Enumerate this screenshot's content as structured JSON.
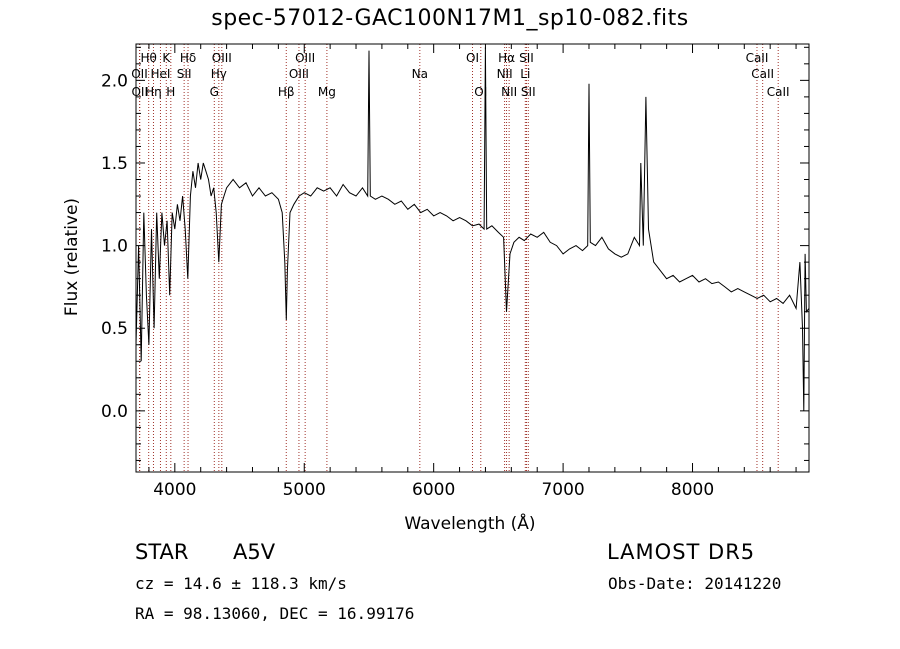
{
  "chart_data": {
    "type": "line",
    "title": "spec-57012-GAC100N17M1_sp10-082.fits",
    "xlabel": "Wavelength (Å)",
    "ylabel": "Flux (relative)",
    "xlim": [
      3700,
      8900
    ],
    "ylim": [
      -0.37,
      2.22
    ],
    "x_ticks": [
      4000,
      5000,
      6000,
      7000,
      8000
    ],
    "x_tick_labels": [
      "4000",
      "5000",
      "6000",
      "7000",
      "8000"
    ],
    "y_ticks": [
      0.0,
      0.5,
      1.0,
      1.5,
      2.0
    ],
    "y_tick_labels": [
      "0.0",
      "0.5",
      "1.0",
      "1.5",
      "2.0"
    ],
    "grid": false,
    "line_color": "#000000",
    "marker_color": "#a0322a",
    "series": [
      {
        "x": [
          3700,
          3720,
          3740,
          3760,
          3780,
          3800,
          3820,
          3840,
          3860,
          3880,
          3900,
          3920,
          3940,
          3960,
          3980,
          4000,
          4020,
          4040,
          4060,
          4080,
          4100,
          4120,
          4140,
          4160,
          4180,
          4200,
          4220,
          4240,
          4260,
          4280,
          4300,
          4320,
          4340,
          4360,
          4380,
          4400,
          4450,
          4500,
          4550,
          4600,
          4650,
          4700,
          4750,
          4800,
          4830,
          4850,
          4861,
          4870,
          4890,
          4920,
          4960,
          5000,
          5050,
          5100,
          5150,
          5200,
          5250,
          5300,
          5350,
          5400,
          5450,
          5490,
          5500,
          5510,
          5550,
          5600,
          5650,
          5700,
          5750,
          5800,
          5850,
          5900,
          5950,
          6000,
          6050,
          6100,
          6150,
          6200,
          6250,
          6300,
          6350,
          6390,
          6400,
          6410,
          6450,
          6500,
          6540,
          6563,
          6590,
          6620,
          6660,
          6700,
          6750,
          6800,
          6850,
          6900,
          6950,
          7000,
          7050,
          7100,
          7150,
          7190,
          7200,
          7210,
          7250,
          7300,
          7350,
          7400,
          7450,
          7500,
          7550,
          7590,
          7600,
          7620,
          7640,
          7660,
          7700,
          7750,
          7800,
          7850,
          7900,
          7950,
          8000,
          8050,
          8100,
          8150,
          8200,
          8250,
          8300,
          8350,
          8400,
          8450,
          8500,
          8550,
          8600,
          8650,
          8700,
          8750,
          8800,
          8830,
          8850,
          8860,
          8870,
          8880,
          8900
        ],
        "y": [
          0.4,
          1.0,
          0.3,
          1.2,
          0.7,
          0.4,
          1.1,
          0.5,
          1.2,
          0.8,
          1.2,
          1.0,
          1.15,
          0.7,
          1.2,
          1.1,
          1.25,
          1.15,
          1.3,
          1.1,
          0.8,
          1.3,
          1.45,
          1.35,
          1.5,
          1.4,
          1.5,
          1.45,
          1.4,
          1.3,
          1.35,
          1.2,
          0.9,
          1.25,
          1.3,
          1.35,
          1.4,
          1.35,
          1.38,
          1.3,
          1.35,
          1.3,
          1.32,
          1.28,
          1.2,
          0.9,
          0.55,
          0.85,
          1.2,
          1.25,
          1.3,
          1.32,
          1.3,
          1.35,
          1.33,
          1.35,
          1.3,
          1.37,
          1.32,
          1.3,
          1.35,
          1.3,
          2.18,
          1.3,
          1.28,
          1.3,
          1.28,
          1.25,
          1.27,
          1.22,
          1.25,
          1.2,
          1.22,
          1.18,
          1.2,
          1.18,
          1.15,
          1.17,
          1.15,
          1.12,
          1.13,
          1.1,
          2.2,
          1.1,
          1.12,
          1.08,
          1.05,
          0.6,
          0.95,
          1.02,
          1.05,
          1.03,
          1.07,
          1.05,
          1.08,
          1.02,
          1.0,
          0.95,
          0.98,
          1.0,
          0.97,
          1.0,
          1.98,
          1.02,
          1.0,
          1.05,
          0.98,
          0.95,
          0.93,
          0.95,
          1.05,
          1.0,
          1.5,
          1.0,
          1.9,
          1.1,
          0.9,
          0.85,
          0.8,
          0.82,
          0.78,
          0.8,
          0.82,
          0.78,
          0.8,
          0.77,
          0.78,
          0.75,
          0.72,
          0.74,
          0.72,
          0.7,
          0.68,
          0.7,
          0.66,
          0.68,
          0.65,
          0.7,
          0.62,
          0.9,
          0.5,
          0.0,
          0.95,
          0.6,
          0.62
        ]
      }
    ],
    "line_markers": [
      {
        "label": "Hθ",
        "x": 3798,
        "row": 1
      },
      {
        "label": "K",
        "x": 3934,
        "row": 1
      },
      {
        "label": "Hδ",
        "x": 4102,
        "row": 1
      },
      {
        "label": "OIII",
        "x": 4363,
        "row": 1
      },
      {
        "label": "OIII",
        "x": 5007,
        "row": 1
      },
      {
        "label": "OI",
        "x": 6300,
        "row": 1
      },
      {
        "label": "Hα",
        "x": 6563,
        "row": 1
      },
      {
        "label": "SII",
        "x": 6717,
        "row": 1
      },
      {
        "label": "CaII",
        "x": 8498,
        "row": 1
      },
      {
        "label": "OII",
        "x": 3727,
        "row": 2
      },
      {
        "label": "HeI",
        "x": 3889,
        "row": 2
      },
      {
        "label": "SII",
        "x": 4072,
        "row": 2
      },
      {
        "label": "Hγ",
        "x": 4340,
        "row": 2
      },
      {
        "label": "OIII",
        "x": 4959,
        "row": 2
      },
      {
        "label": "Na",
        "x": 5893,
        "row": 2
      },
      {
        "label": "NII",
        "x": 6548,
        "row": 2
      },
      {
        "label": "Li",
        "x": 6708,
        "row": 2
      },
      {
        "label": "CaII",
        "x": 8542,
        "row": 2
      },
      {
        "label": "OII",
        "x": 3729,
        "row": 3
      },
      {
        "label": "Hη",
        "x": 3835,
        "row": 3
      },
      {
        "label": "H",
        "x": 3969,
        "row": 3
      },
      {
        "label": "G",
        "x": 4305,
        "row": 3
      },
      {
        "label": "Hβ",
        "x": 4861,
        "row": 3
      },
      {
        "label": "Mg",
        "x": 5175,
        "row": 3
      },
      {
        "label": "OI",
        "x": 6364,
        "row": 3
      },
      {
        "label": "NII",
        "x": 6583,
        "row": 3
      },
      {
        "label": "SII",
        "x": 6731,
        "row": 3
      },
      {
        "label": "CaII",
        "x": 8662,
        "row": 3
      }
    ]
  },
  "info": {
    "object_class": "STAR",
    "subclass": "A5V",
    "survey": "LAMOST DR5",
    "cz": "cz = 14.6 ± 118.3 km/s",
    "obs_date": "Obs-Date: 20141220",
    "coords": "RA =  98.13060, DEC =  16.99176"
  }
}
